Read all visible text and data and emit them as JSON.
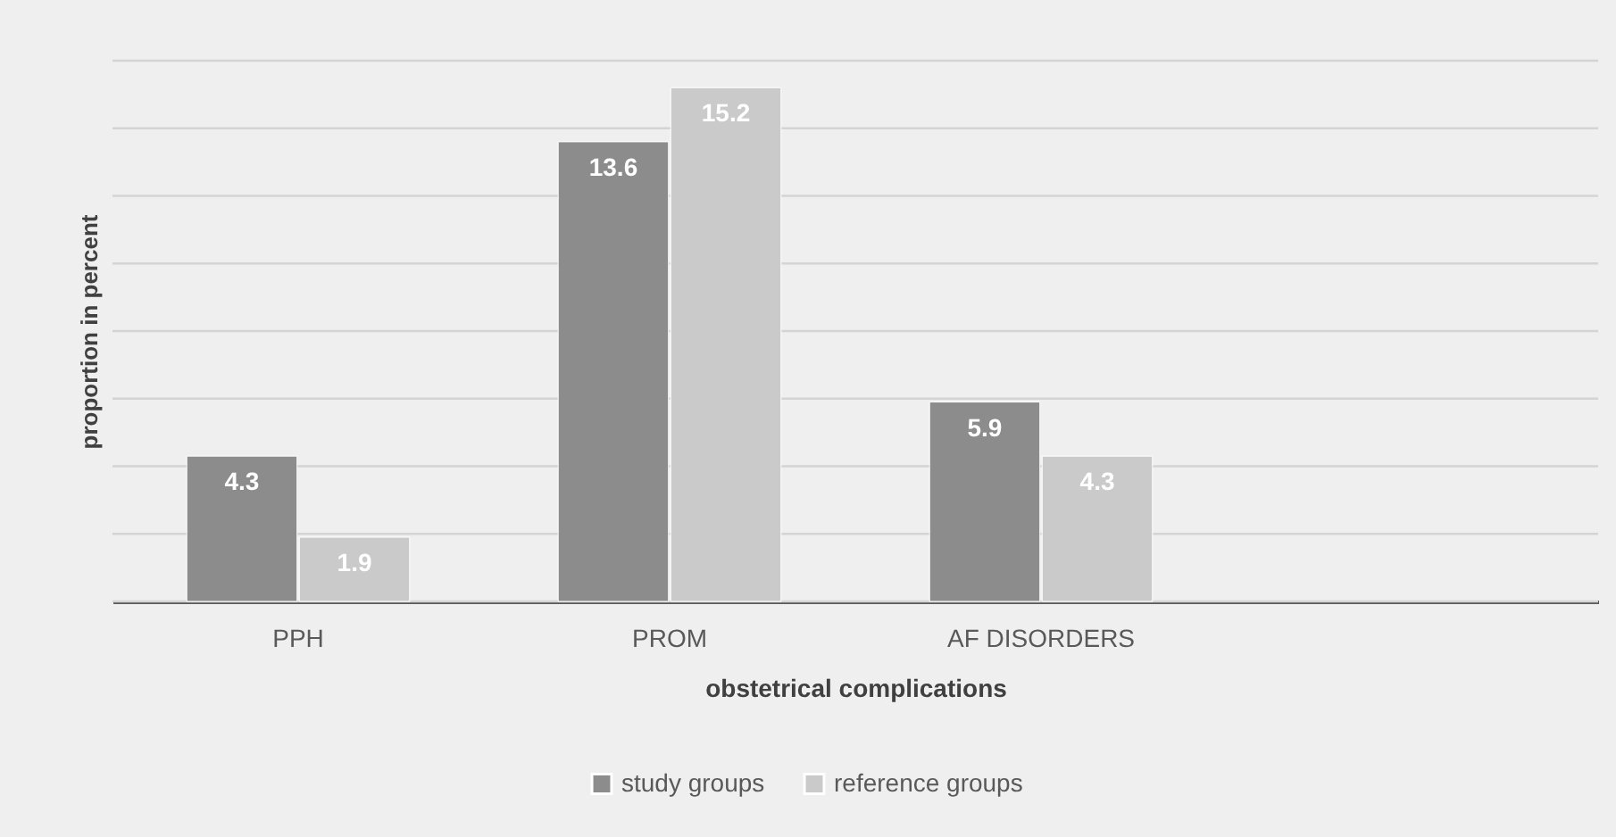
{
  "chart_data": {
    "type": "bar",
    "xlabel": "obstetrical complications",
    "ylabel": "proportion in percent",
    "categories": [
      "PPH",
      "PROM",
      "AF DISORDERS"
    ],
    "series": [
      {
        "name": "study groups",
        "color": "#8c8c8c",
        "values": [
          4.3,
          13.6,
          5.9
        ]
      },
      {
        "name": "reference groups",
        "color": "#c9cac9",
        "values": [
          1.9,
          15.2,
          4.3
        ]
      }
    ],
    "ylim": [
      0,
      16
    ],
    "yticks": [
      0,
      2,
      4,
      6,
      8,
      10,
      12,
      14,
      16
    ],
    "tick_labels": "x",
    "grid": "y",
    "legend": "bottom",
    "data_labels": true
  }
}
